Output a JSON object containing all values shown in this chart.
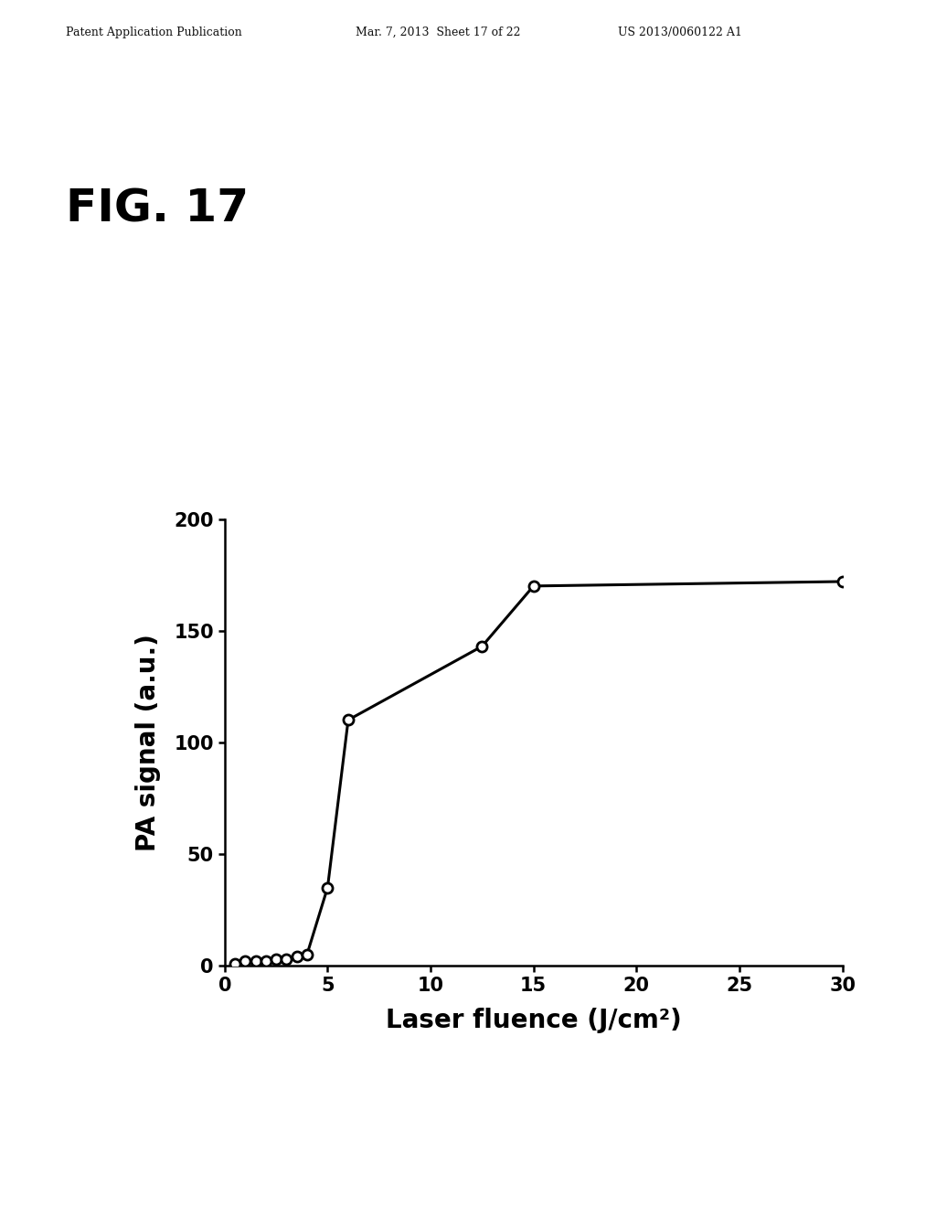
{
  "header_left": "Patent Application Publication",
  "header_mid": "Mar. 7, 2013  Sheet 17 of 22",
  "header_right": "US 2013/0060122 A1",
  "fig_label": "FIG. 17",
  "x_data": [
    0.5,
    1.0,
    1.5,
    2.0,
    2.5,
    3.0,
    3.5,
    4.0,
    5.0,
    6.0,
    12.5,
    15.0,
    30.0
  ],
  "y_data": [
    1,
    2,
    2,
    2,
    3,
    3,
    4,
    5,
    35,
    110,
    143,
    170,
    172
  ],
  "xlabel": "Laser fluence (J/cm²)",
  "ylabel": "PA signal (a.u.)",
  "xlim": [
    0,
    30
  ],
  "ylim": [
    0,
    200
  ],
  "xticks": [
    0,
    5,
    10,
    15,
    20,
    25,
    30
  ],
  "yticks": [
    0,
    50,
    100,
    150,
    200
  ],
  "background_color": "#ffffff",
  "line_color": "#000000",
  "marker_face": "#ffffff",
  "marker_edge": "#000000",
  "header_fontsize": 9,
  "figlabel_fontsize": 36,
  "axis_label_fontsize": 20,
  "tick_fontsize": 15
}
